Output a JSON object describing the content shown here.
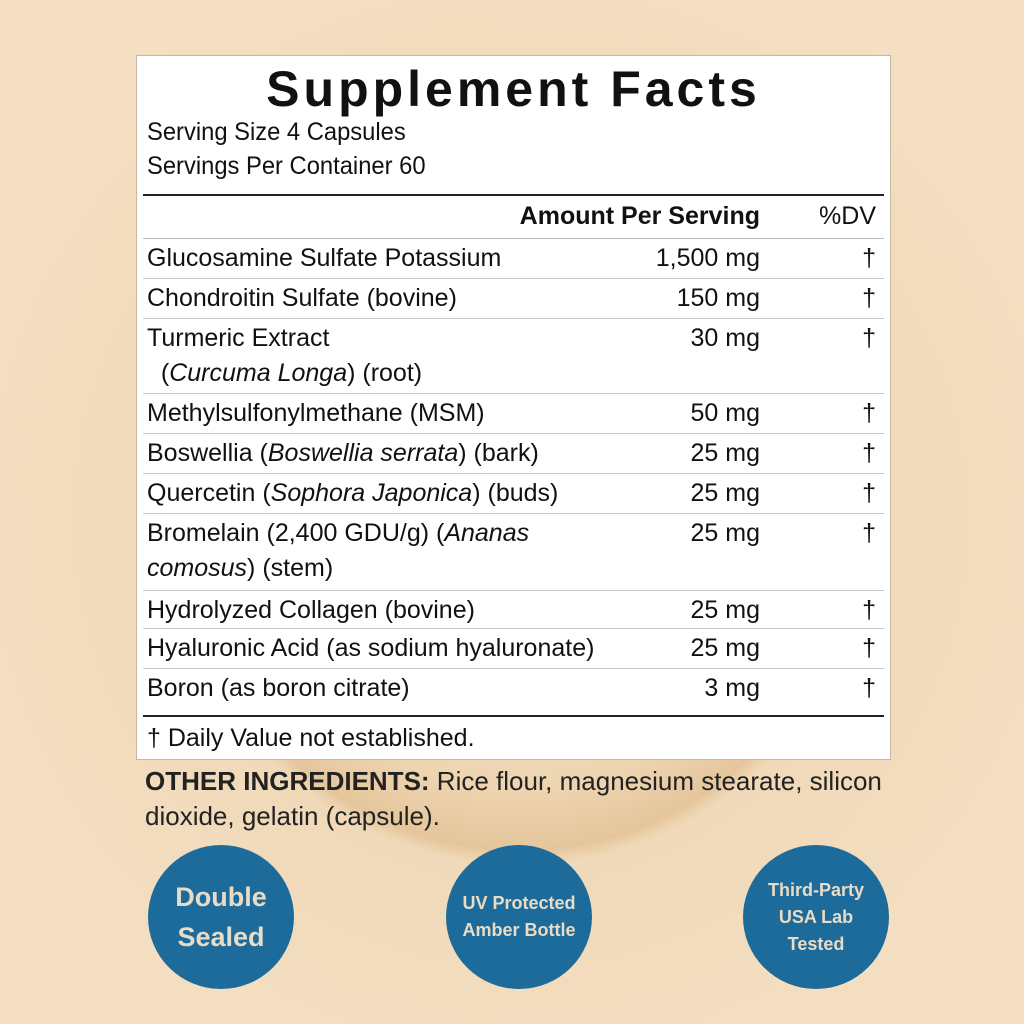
{
  "label": {
    "title": "Supplement Facts",
    "serving_size": "Serving Size 4 Capsules",
    "servings_per_container": "Servings Per Container 60",
    "col_amount": "Amount Per Serving",
    "col_dv": "%DV",
    "rows": [
      {
        "name": [
          {
            "t": "Glucosamine Sulfate Potassium"
          }
        ],
        "amount": "1,500 mg",
        "dv": "†"
      },
      {
        "name": [
          {
            "t": "Chondroitin Sulfate (bovine)"
          }
        ],
        "amount": "150 mg",
        "dv": "†"
      },
      {
        "name": [
          {
            "t": "Turmeric Extract"
          },
          {
            "t": "\n  ("
          },
          {
            "t": "Curcuma Longa",
            "i": true
          },
          {
            "t": ") (root)"
          }
        ],
        "amount": "30 mg",
        "dv": "†"
      },
      {
        "name": [
          {
            "t": "Methylsulfonylmethane (MSM)"
          }
        ],
        "amount": "50 mg",
        "dv": "†"
      },
      {
        "name": [
          {
            "t": "Boswellia ("
          },
          {
            "t": "Boswellia serrata",
            "i": true
          },
          {
            "t": ") (bark)"
          }
        ],
        "amount": "25 mg",
        "dv": "†"
      },
      {
        "name": [
          {
            "t": "Quercetin ("
          },
          {
            "t": "Sophora Japonica",
            "i": true
          },
          {
            "t": ") (buds)"
          }
        ],
        "amount": "25 mg",
        "dv": "†"
      },
      {
        "name": [
          {
            "t": "Bromelain (2,400 GDU/g) ("
          },
          {
            "t": "Ananas\ncomosus",
            "i": true
          },
          {
            "t": ") (stem)"
          }
        ],
        "amount": "25 mg",
        "dv": "†"
      },
      {
        "name": [
          {
            "t": "Hydrolyzed Collagen (bovine)"
          }
        ],
        "amount": "25 mg",
        "dv": "†"
      },
      {
        "name": [
          {
            "t": "Hyaluronic Acid (as sodium hyaluronate)"
          }
        ],
        "amount": "25 mg",
        "dv": "†"
      },
      {
        "name": [
          {
            "t": "Boron (as boron citrate)"
          }
        ],
        "amount": "3 mg",
        "dv": "†"
      }
    ],
    "footnote": "† Daily Value not established."
  },
  "other_ingredients": {
    "label": "OTHER INGREDIENTS:",
    "text": " Rice flour, magnesium stearate, silicon dioxide, gelatin (capsule)."
  },
  "badges": [
    {
      "lines": [
        "Double",
        "Sealed"
      ]
    },
    {
      "lines": [
        "UV Protected",
        "Amber Bottle"
      ]
    },
    {
      "lines": [
        "Third-Party",
        "USA Lab",
        "Tested"
      ]
    }
  ],
  "colors": {
    "badge": "#1c6b9b",
    "badge_text": "#e8dcc6",
    "background": "#efd6b3"
  }
}
